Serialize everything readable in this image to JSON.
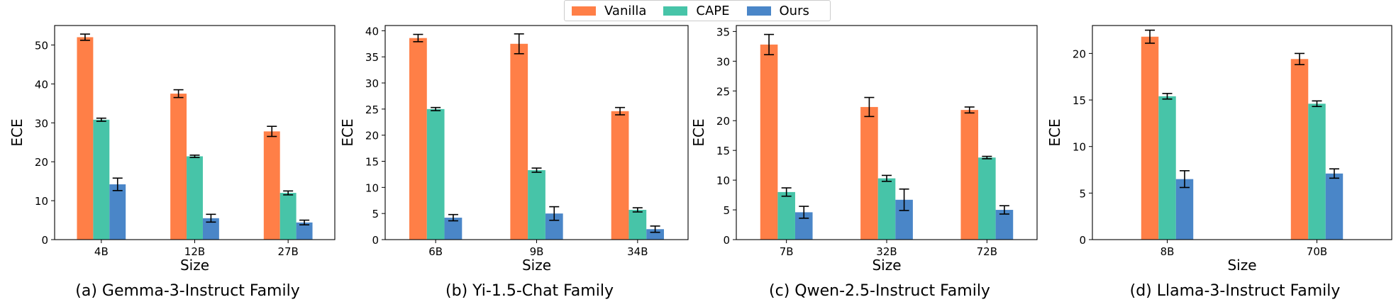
{
  "legend": {
    "placement": "top-center",
    "items": [
      {
        "label": "Vanilla",
        "color": "#ff7f47"
      },
      {
        "label": "CAPE",
        "color": "#47c4a8"
      },
      {
        "label": "Ours",
        "color": "#4a86c8"
      }
    ]
  },
  "chart_data": [
    {
      "type": "bar",
      "caption": "(a) Gemma-3-Instruct Family",
      "xlabel": "Size",
      "ylabel": "ECE",
      "ylim": [
        0,
        55
      ],
      "yticks": [
        0,
        10,
        20,
        30,
        40,
        50
      ],
      "categories": [
        "4B",
        "12B",
        "27B"
      ],
      "series": [
        {
          "name": "Vanilla",
          "values": [
            52.0,
            37.5,
            27.8
          ],
          "errors": [
            0.8,
            1.0,
            1.3
          ]
        },
        {
          "name": "CAPE",
          "values": [
            30.8,
            21.4,
            12.0
          ],
          "errors": [
            0.4,
            0.3,
            0.5
          ]
        },
        {
          "name": "Ours",
          "values": [
            14.2,
            5.5,
            4.4
          ],
          "errors": [
            1.6,
            1.0,
            0.6
          ]
        }
      ]
    },
    {
      "type": "bar",
      "caption": "(b) Yi-1.5-Chat Family",
      "xlabel": "Size",
      "ylabel": "ECE",
      "ylim": [
        0,
        41
      ],
      "yticks": [
        0,
        5,
        10,
        15,
        20,
        25,
        30,
        35,
        40
      ],
      "categories": [
        "6B",
        "9B",
        "34B"
      ],
      "series": [
        {
          "name": "Vanilla",
          "values": [
            38.6,
            37.5,
            24.6
          ],
          "errors": [
            0.7,
            1.9,
            0.7
          ]
        },
        {
          "name": "CAPE",
          "values": [
            25.0,
            13.3,
            5.7
          ],
          "errors": [
            0.3,
            0.4,
            0.4
          ]
        },
        {
          "name": "Ours",
          "values": [
            4.2,
            5.0,
            2.0
          ],
          "errors": [
            0.6,
            1.3,
            0.6
          ]
        }
      ]
    },
    {
      "type": "bar",
      "caption": "(c) Qwen-2.5-Instruct Family",
      "xlabel": "Size",
      "ylabel": "ECE",
      "ylim": [
        0,
        36
      ],
      "yticks": [
        0,
        5,
        10,
        15,
        20,
        25,
        30,
        35
      ],
      "categories": [
        "7B",
        "32B",
        "72B"
      ],
      "series": [
        {
          "name": "Vanilla",
          "values": [
            32.8,
            22.3,
            21.8
          ],
          "errors": [
            1.7,
            1.6,
            0.5
          ]
        },
        {
          "name": "CAPE",
          "values": [
            8.0,
            10.3,
            13.8
          ],
          "errors": [
            0.7,
            0.5,
            0.2
          ]
        },
        {
          "name": "Ours",
          "values": [
            4.6,
            6.7,
            5.0
          ],
          "errors": [
            1.0,
            1.8,
            0.7
          ]
        }
      ]
    },
    {
      "type": "bar",
      "caption": "(d) Llama-3-Instruct Family",
      "xlabel": "Size",
      "ylabel": "ECE",
      "ylim": [
        0,
        23
      ],
      "yticks": [
        0,
        5,
        10,
        15,
        20
      ],
      "categories": [
        "8B",
        "70B"
      ],
      "series": [
        {
          "name": "Vanilla",
          "values": [
            21.8,
            19.4
          ],
          "errors": [
            0.7,
            0.6
          ]
        },
        {
          "name": "CAPE",
          "values": [
            15.4,
            14.6
          ],
          "errors": [
            0.3,
            0.3
          ]
        },
        {
          "name": "Ours",
          "values": [
            6.5,
            7.1
          ],
          "errors": [
            0.9,
            0.5
          ]
        }
      ]
    }
  ]
}
